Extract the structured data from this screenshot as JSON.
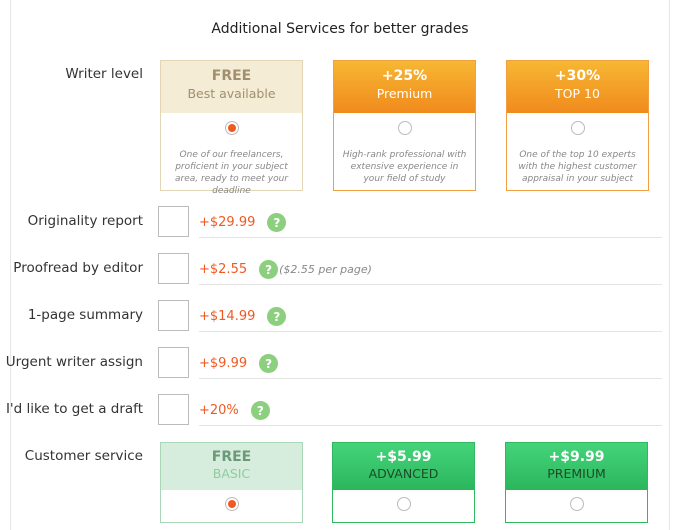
{
  "title": "Additional Services for better grades",
  "writer_level": {
    "label": "Writer level",
    "options": [
      {
        "price": "FREE",
        "name": "Best available",
        "description": "One of our freelancers, proficient in your subject area, ready to meet your deadline",
        "selected": true
      },
      {
        "price": "+25%",
        "name": "Premium",
        "description": "High-rank professional with extensive experience in your field of study",
        "selected": false
      },
      {
        "price": "+30%",
        "name": "TOP 10",
        "description": "One of the top 10 experts with the highest customer appraisal in your subject",
        "selected": false
      }
    ]
  },
  "help_symbol": "?",
  "extras": [
    {
      "label": "Originality report",
      "price": "+$29.99"
    },
    {
      "label": "Proofread by editor",
      "price": "+$2.55",
      "note": "($2.55 per page)"
    },
    {
      "label": "1-page summary",
      "price": "+$14.99"
    },
    {
      "label": "Urgent writer assign",
      "price": "+$9.99"
    },
    {
      "label": "I'd like to get a draft",
      "price": "+20%"
    }
  ],
  "customer_service": {
    "label": "Customer service",
    "options": [
      {
        "price": "FREE",
        "name": "BASIC",
        "selected": true
      },
      {
        "price": "+$5.99",
        "name": "ADVANCED",
        "selected": false
      },
      {
        "price": "+$9.99",
        "name": "PREMIUM",
        "selected": false
      }
    ]
  }
}
